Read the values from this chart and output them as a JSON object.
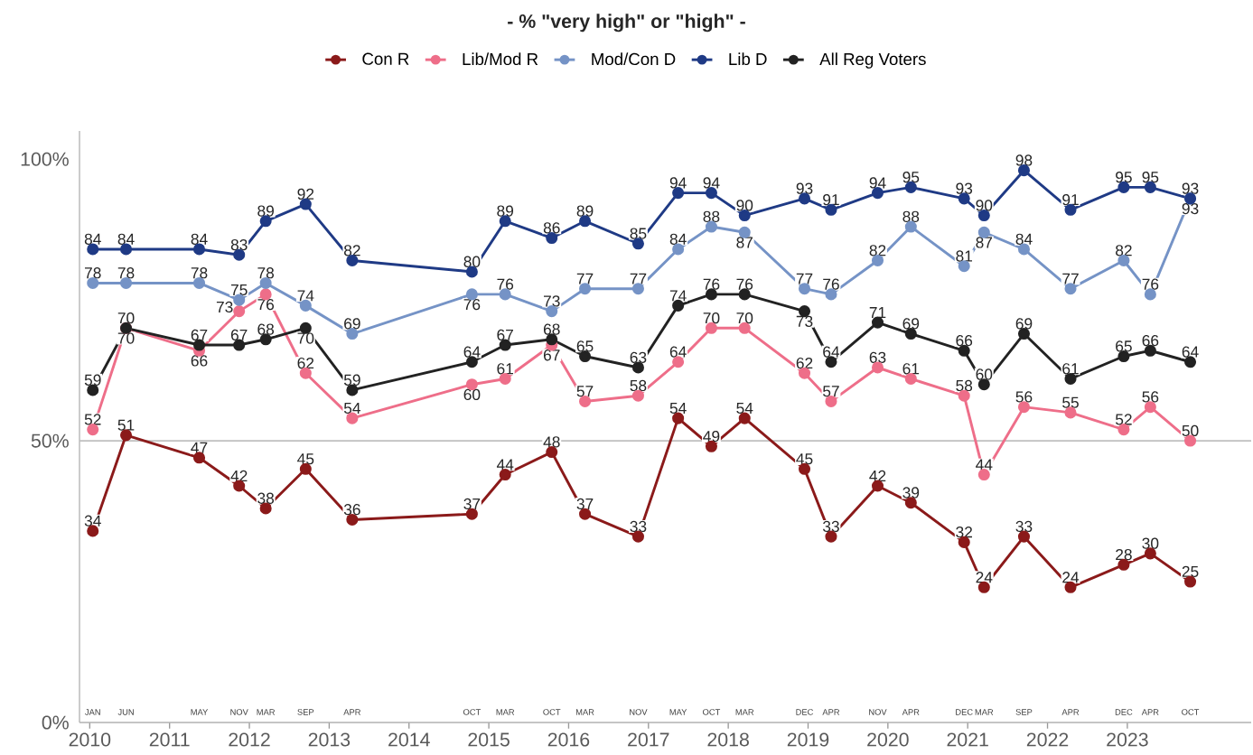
{
  "chart_data": {
    "type": "line",
    "title": "- % \"very high\" or \"high\" -",
    "x": [
      "2010-01",
      "2010-06",
      "2011-05",
      "2011-11",
      "2012-03",
      "2012-09",
      "2013-04",
      "2014-10",
      "2015-03",
      "2015-10",
      "2016-03",
      "2016-11",
      "2017-05",
      "2017-10",
      "2018-03",
      "2018-12",
      "2019-04",
      "2019-11",
      "2020-04",
      "2020-12",
      "2021-03",
      "2021-09",
      "2022-04",
      "2022-12",
      "2023-04",
      "2023-10"
    ],
    "series": [
      {
        "name": "Con R",
        "color": "#8b1a1a",
        "values": [
          34,
          51,
          47,
          42,
          38,
          45,
          36,
          37,
          44,
          48,
          37,
          33,
          54,
          49,
          54,
          45,
          33,
          42,
          39,
          32,
          24,
          33,
          24,
          28,
          30,
          25
        ]
      },
      {
        "name": "Lib/Mod R",
        "color": "#ee6e89",
        "values": [
          52,
          70,
          66,
          73,
          76,
          62,
          54,
          60,
          61,
          67,
          57,
          58,
          64,
          70,
          70,
          62,
          57,
          63,
          61,
          58,
          44,
          56,
          55,
          52,
          56,
          50
        ]
      },
      {
        "name": "Mod/Con D",
        "color": "#7593c6",
        "values": [
          78,
          78,
          78,
          75,
          78,
          74,
          69,
          76,
          76,
          73,
          77,
          77,
          84,
          88,
          87,
          77,
          76,
          82,
          88,
          81,
          87,
          84,
          77,
          82,
          76,
          93
        ]
      },
      {
        "name": "Lib D",
        "color": "#1f3a85",
        "values": [
          84,
          84,
          84,
          83,
          89,
          92,
          82,
          80,
          89,
          86,
          89,
          85,
          94,
          94,
          90,
          93,
          91,
          94,
          95,
          93,
          90,
          98,
          91,
          95,
          95,
          93
        ]
      },
      {
        "name": "All Reg Voters",
        "color": "#222222",
        "values": [
          59,
          70,
          67,
          67,
          68,
          70,
          59,
          64,
          67,
          68,
          65,
          63,
          74,
          76,
          76,
          73,
          64,
          71,
          69,
          66,
          60,
          69,
          61,
          65,
          66,
          64
        ]
      }
    ],
    "xlim": [
      "2009-11-15",
      "2024-07-20"
    ],
    "xticks": [
      "2010",
      "2011",
      "2012",
      "2013",
      "2014",
      "2015",
      "2016",
      "2017",
      "2018",
      "2019",
      "2020",
      "2021",
      "2022",
      "2023"
    ],
    "ylim": [
      0,
      105
    ],
    "yticks": [
      {
        "value": 0,
        "label": "0%"
      },
      {
        "value": 50,
        "label": "50%"
      },
      {
        "value": 100,
        "label": "100%"
      }
    ],
    "ref_lines": [
      {
        "axis": "y",
        "value": 50,
        "color": "#bfbfbf"
      }
    ],
    "annotations": [
      "JAN",
      "JUN",
      "MAY",
      "NOV",
      "MAR",
      "SEP",
      "APR",
      "OCT",
      "MAR",
      "OCT",
      "MAR",
      "NOV",
      "MAY",
      "OCT",
      "MAR",
      "DEC",
      "APR",
      "NOV",
      "APR",
      "DEC",
      "MAR",
      "SEP",
      "APR",
      "DEC",
      "APR",
      "OCT"
    ],
    "data_labels": true,
    "legend": "top",
    "marker": "circle",
    "line_style": "solid",
    "grid": false
  }
}
